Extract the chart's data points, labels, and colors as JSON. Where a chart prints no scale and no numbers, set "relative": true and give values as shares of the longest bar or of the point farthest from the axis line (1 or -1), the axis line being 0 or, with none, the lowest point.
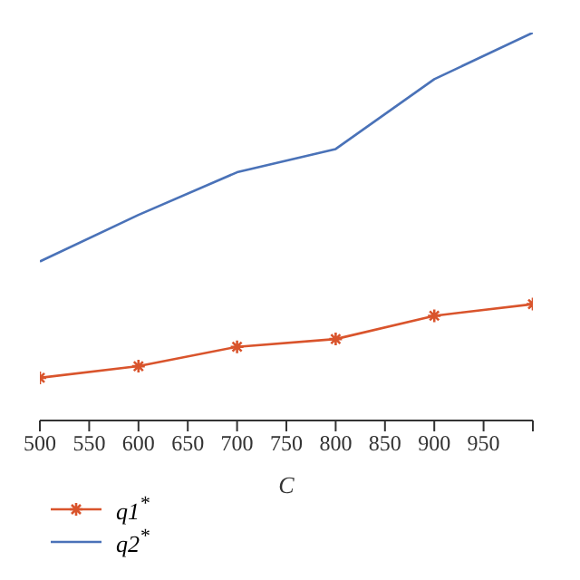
{
  "chart_data": {
    "type": "line",
    "relative": true,
    "xlabel": "C",
    "x": [
      500,
      600,
      700,
      800,
      900,
      1000
    ],
    "xlim": [
      500,
      1000
    ],
    "xticks": [
      500,
      550,
      600,
      650,
      700,
      750,
      800,
      850,
      900,
      950,
      {
        "value": 1000,
        "label": null
      }
    ],
    "legend": "bottom left",
    "series": [
      {
        "name": "q1$^{*}$",
        "color": "#d9542c",
        "marker": "cross",
        "values": [
          0.11,
          0.14,
          0.19,
          0.21,
          0.27,
          0.3
        ]
      },
      {
        "name": "q2$^{*}$",
        "color": "#4a72b8",
        "marker": "none",
        "values": [
          0.41,
          0.53,
          0.64,
          0.7,
          0.88,
          1
        ]
      }
    ]
  }
}
